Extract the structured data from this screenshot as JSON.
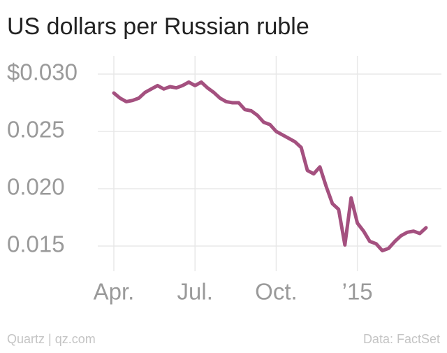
{
  "chart_data": {
    "type": "line",
    "title": "US dollars per Russian ruble",
    "source_left": "Quartz | qz.com",
    "source_right": "Data: FactSet",
    "categories": [
      "Apr.",
      null,
      null,
      null,
      null,
      null,
      null,
      null,
      null,
      null,
      null,
      null,
      null,
      "Jul.",
      null,
      null,
      null,
      null,
      null,
      null,
      null,
      null,
      null,
      null,
      null,
      null,
      "Oct.",
      null,
      null,
      null,
      null,
      null,
      null,
      null,
      null,
      null,
      null,
      null,
      null,
      "’15",
      null,
      null,
      null,
      null,
      null,
      null,
      null,
      null,
      null,
      null,
      null
    ],
    "series": [
      {
        "name": "USD per RUB",
        "color": "#a4507f",
        "values": [
          0.02835,
          0.0279,
          0.0276,
          0.0277,
          0.0279,
          0.0284,
          0.0287,
          0.029,
          0.0287,
          0.0289,
          0.0288,
          0.029,
          0.0293,
          0.029,
          0.0293,
          0.0288,
          0.0284,
          0.0279,
          0.0276,
          0.0275,
          0.0275,
          0.0269,
          0.0268,
          0.0264,
          0.0258,
          0.0256,
          0.025,
          0.0247,
          0.0244,
          0.0241,
          0.0236,
          0.0216,
          0.0213,
          0.0219,
          0.0202,
          0.0187,
          0.0182,
          0.0151,
          0.0192,
          0.017,
          0.0163,
          0.0154,
          0.0152,
          0.0146,
          0.0148,
          0.0154,
          0.0159,
          0.0162,
          0.0163,
          0.0161,
          0.0166
        ]
      }
    ],
    "ylim": [
      0.0135,
      0.031
    ],
    "yticks": [
      {
        "value": 0.015,
        "label": "0.015"
      },
      {
        "value": 0.02,
        "label": "0.020"
      },
      {
        "value": 0.025,
        "label": "0.025"
      },
      {
        "value": 0.03,
        "label": "$0.030"
      }
    ],
    "grid": true
  }
}
